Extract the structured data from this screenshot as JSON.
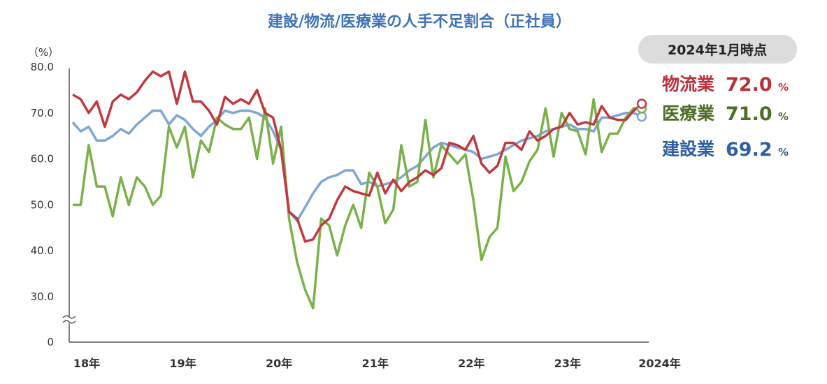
{
  "chart_data": {
    "type": "line",
    "title": "建設/物流/医療業の人手不足割合（正社員）",
    "yunit": "（%）",
    "ylim": [
      0,
      80
    ],
    "axis_break": [
      0,
      30
    ],
    "yticks": [
      "80.0",
      "70.0",
      "60.0",
      "50.0",
      "40.0",
      "30.0",
      "0"
    ],
    "xticks": [
      "18年",
      "19年",
      "20年",
      "21年",
      "22年",
      "23年",
      "2024年"
    ],
    "x_start": "2018-01",
    "x_end": "2024-01",
    "series": [
      {
        "name": "物流業",
        "color": "#c0393f",
        "latest": "72.0",
        "values": [
          74.0,
          73.0,
          70.0,
          72.5,
          67.0,
          72.5,
          74.0,
          73.0,
          74.5,
          77.0,
          79.0,
          78.0,
          79.0,
          72.0,
          79.0,
          72.5,
          72.5,
          70.5,
          67.5,
          73.5,
          72.0,
          73.0,
          72.0,
          75.0,
          70.0,
          69.0,
          62.0,
          48.5,
          47.0,
          42.0,
          42.5,
          45.5,
          47.0,
          51.0,
          54.0,
          53.0,
          52.5,
          52.0,
          57.0,
          52.5,
          55.5,
          53.0,
          55.0,
          56.0,
          57.5,
          56.5,
          58.0,
          63.5,
          63.0,
          62.0,
          65.0,
          59.0,
          57.0,
          58.5,
          63.5,
          63.5,
          62.0,
          66.0,
          64.0,
          65.0,
          66.5,
          67.0,
          70.0,
          67.5,
          68.0,
          67.5,
          71.5,
          69.0,
          68.5,
          68.5,
          70.5,
          72.0
        ]
      },
      {
        "name": "医療業",
        "color": "#7ab14a",
        "latest": "71.0",
        "values": [
          50.0,
          50.0,
          63.0,
          54.0,
          54.0,
          47.5,
          56.0,
          50.0,
          56.0,
          54.0,
          50.0,
          52.0,
          67.0,
          62.5,
          67.0,
          56.0,
          64.0,
          61.5,
          69.0,
          67.5,
          66.5,
          66.5,
          69.0,
          60.0,
          71.0,
          59.0,
          67.0,
          47.0,
          37.5,
          31.5,
          27.5,
          47.0,
          45.5,
          39.0,
          45.5,
          50.0,
          45.0,
          57.0,
          54.0,
          46.0,
          49.0,
          63.0,
          54.0,
          55.0,
          68.5,
          56.0,
          63.0,
          61.0,
          59.0,
          61.0,
          51.0,
          38.0,
          43.0,
          45.0,
          60.5,
          53.0,
          55.0,
          59.5,
          62.0,
          71.0,
          60.5,
          70.0,
          66.5,
          66.0,
          61.0,
          73.0,
          61.5,
          65.5,
          65.5,
          69.0,
          71.0,
          71.0
        ]
      },
      {
        "name": "建設業",
        "color": "#7ea6d6",
        "latest": "69.2",
        "values": [
          68.0,
          66.0,
          67.0,
          64.0,
          64.0,
          65.0,
          66.5,
          65.5,
          67.5,
          69.0,
          70.5,
          70.5,
          67.5,
          69.5,
          68.5,
          66.5,
          65.0,
          67.0,
          68.5,
          70.5,
          70.0,
          70.5,
          70.5,
          70.0,
          69.0,
          66.0,
          62.0,
          48.5,
          46.5,
          49.5,
          52.5,
          55.0,
          56.0,
          56.5,
          57.5,
          57.5,
          54.5,
          55.0,
          54.0,
          54.5,
          55.0,
          56.0,
          57.5,
          58.5,
          60.5,
          62.5,
          63.5,
          63.0,
          62.5,
          62.0,
          61.5,
          60.0,
          60.5,
          61.0,
          62.0,
          63.0,
          64.0,
          64.5,
          65.0,
          66.0,
          66.5,
          67.0,
          67.5,
          66.5,
          66.5,
          66.0,
          69.0,
          69.0,
          69.5,
          70.0,
          70.0,
          69.2
        ]
      }
    ]
  },
  "badge": {
    "label": "2024年1月時点"
  },
  "legend_unit": "%"
}
